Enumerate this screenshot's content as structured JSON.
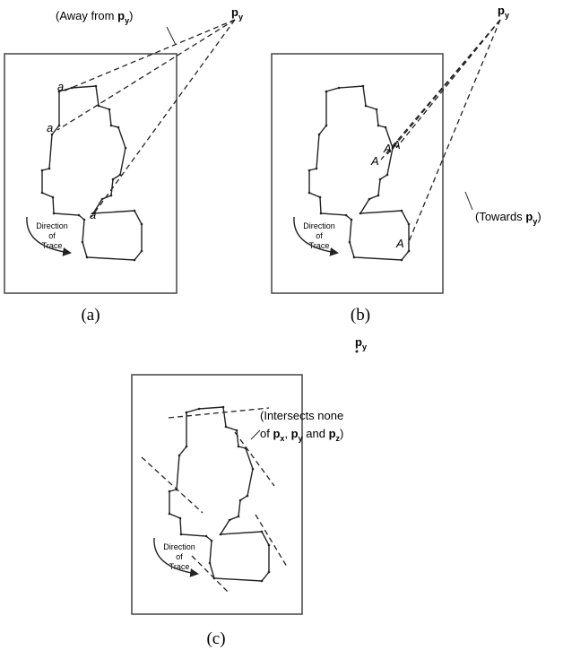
{
  "panels": [
    {
      "caption": "(a)",
      "point": {
        "name": "p",
        "sub": "y"
      },
      "note": {
        "before": "(Away from ",
        "name": "p",
        "sub": "y",
        "after": ")"
      },
      "vertex_labels": [
        "a",
        "a",
        "a"
      ],
      "direction": [
        "Direction",
        "of",
        "Trace"
      ]
    },
    {
      "caption": "(b)",
      "point": {
        "name": "p",
        "sub": "y"
      },
      "note": {
        "before": "(Towards ",
        "name": "p",
        "sub": "y",
        "after": ")"
      },
      "vertex_labels": [
        "A",
        "A",
        "A",
        "A"
      ],
      "direction": [
        "Direction",
        "of",
        "Trace"
      ]
    },
    {
      "caption": "(c)",
      "point": {
        "name": "p",
        "sub": "y"
      },
      "note": {
        "line1": "(Intersects none",
        "of": "of ",
        "p1": {
          "name": "p",
          "sub": "x"
        },
        "sep": ", ",
        "p2": {
          "name": "p",
          "sub": "y"
        },
        "and": " and ",
        "p3": {
          "name": "p",
          "sub": "z"
        },
        "after": ")"
      },
      "direction": [
        "Direction",
        "of",
        "Trace"
      ]
    }
  ]
}
